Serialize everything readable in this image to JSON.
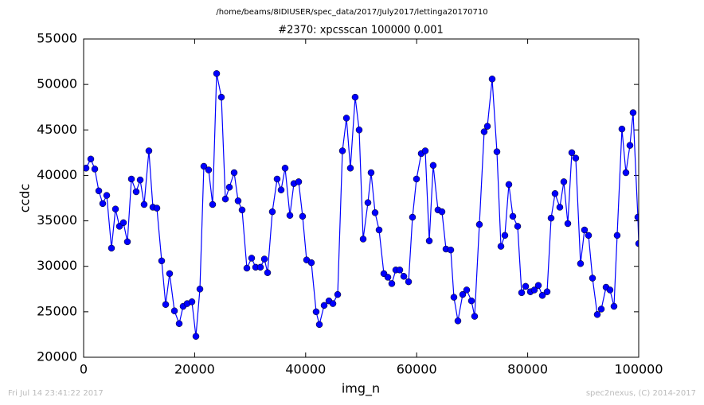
{
  "chart_data": {
    "type": "line",
    "subtitle": "/home/beams/8IDIUSER/spec_data/2017/July2017/lettinga20170710",
    "title": "#2370: xpcsscan 100000 0.001",
    "xlabel": "img_n",
    "ylabel": "ccdc",
    "annotations": [
      "Fri Jul 14 23:41:22 2017",
      "spec2nexus, (C) 2014-2017"
    ],
    "color": "#0000ff",
    "xlim": [
      0,
      100000
    ],
    "xticks": [
      0,
      20000,
      40000,
      60000,
      80000,
      100000
    ],
    "ylim": [
      20000,
      55000
    ],
    "yticks": [
      20000,
      25000,
      30000,
      35000,
      40000,
      45000,
      50000,
      55000
    ],
    "x": [
      430,
      1290,
      2010,
      2730,
      3440,
      4160,
      5020,
      5740,
      6460,
      7170,
      7890,
      8610,
      9470,
      10190,
      10900,
      11760,
      12480,
      13200,
      14060,
      14780,
      15490,
      16360,
      17220,
      17930,
      18650,
      19510,
      20230,
      20950,
      21660,
      22520,
      23240,
      23960,
      24820,
      25540,
      26260,
      27120,
      27830,
      28550,
      29410,
      30270,
      30990,
      31850,
      32570,
      33140,
      34000,
      34860,
      35580,
      36300,
      37160,
      37880,
      38740,
      39450,
      40170,
      41030,
      41890,
      42470,
      43330,
      44190,
      44910,
      45770,
      46630,
      47350,
      48060,
      48920,
      49640,
      50360,
      51220,
      51790,
      52510,
      53230,
      54090,
      54810,
      55520,
      56240,
      56960,
      57680,
      58540,
      59250,
      59970,
      60830,
      61550,
      62270,
      62980,
      63840,
      64560,
      65280,
      66140,
      66710,
      67430,
      68290,
      69010,
      69870,
      70440,
      71300,
      72160,
      72740,
      73600,
      74460,
      75180,
      75890,
      76610,
      77330,
      78190,
      78910,
      79630,
      80490,
      81200,
      81920,
      82640,
      83500,
      84220,
      84930,
      85790,
      86510,
      87230,
      87950,
      88660,
      89520,
      90240,
      90960,
      91680,
      92540,
      93260,
      94120,
      94830,
      95550,
      96120,
      96980,
      97700,
      98420,
      98990,
      99850,
      100000
    ],
    "values": [
      40800,
      41800,
      40700,
      38300,
      36900,
      37800,
      32000,
      36300,
      34400,
      34800,
      32700,
      39600,
      38200,
      39500,
      36800,
      42700,
      36500,
      36400,
      30600,
      25800,
      29200,
      25100,
      23700,
      25600,
      25900,
      26100,
      22300,
      27500,
      41000,
      40600,
      36800,
      51200,
      48600,
      37400,
      38700,
      40300,
      37200,
      36200,
      29800,
      30900,
      29900,
      29900,
      30800,
      29300,
      36000,
      39600,
      38400,
      40800,
      35600,
      39100,
      39300,
      35500,
      30700,
      30400,
      25000,
      23600,
      25700,
      26200,
      25900,
      26900,
      42700,
      46300,
      40800,
      48600,
      45000,
      33000,
      37000,
      40300,
      35900,
      34000,
      29200,
      28800,
      28100,
      29600,
      29600,
      28900,
      28300,
      35400,
      39600,
      42400,
      42700,
      32800,
      41100,
      36200,
      36000,
      31900,
      31800,
      26600,
      24000,
      26900,
      27400,
      26200,
      24500,
      34600,
      44800,
      45400,
      50600,
      42600,
      32200,
      33400,
      39000,
      35500,
      34400,
      27100,
      27800,
      27200,
      27400,
      27900,
      26800,
      27200,
      35300,
      38000,
      36500,
      39300,
      34700,
      42500,
      41900,
      30300,
      34000,
      33400,
      28700,
      24700,
      25300,
      27700,
      27400,
      25600,
      33400,
      45100,
      40300,
      43300,
      46900,
      35400,
      32500
    ]
  }
}
